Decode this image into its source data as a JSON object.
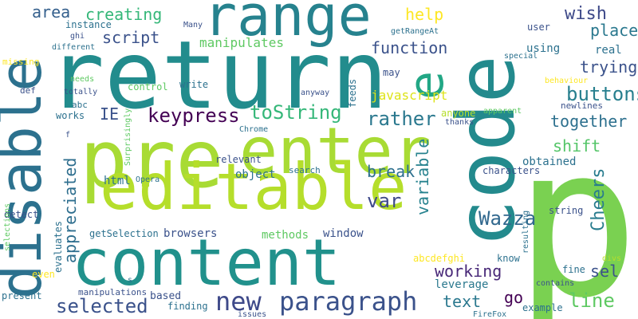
{
  "words": [
    {
      "text": "p",
      "color": "#7ad151",
      "vertical": false
    },
    {
      "text": "return",
      "color": "#228c8d",
      "vertical": false
    },
    {
      "text": "pre",
      "color": "#a8db34",
      "vertical": false
    },
    {
      "text": "enter",
      "color": "#a8db34",
      "vertical": false
    },
    {
      "text": "code",
      "color": "#238a8d",
      "vertical": true
    },
    {
      "text": "editable",
      "color": "#b5de2b",
      "vertical": false
    },
    {
      "text": "content",
      "color": "#21918c",
      "vertical": false
    },
    {
      "text": "disable",
      "color": "#2c718e",
      "vertical": true
    },
    {
      "text": "range",
      "color": "#26828e",
      "vertical": false
    },
    {
      "text": "e",
      "color": "#22a785",
      "vertical": true
    },
    {
      "text": "paragraph",
      "color": "#3b528b",
      "vertical": false
    },
    {
      "text": "new",
      "color": "#3e4989",
      "vertical": false
    },
    {
      "text": "selected",
      "color": "#3b528b",
      "vertical": false
    },
    {
      "text": "keypress",
      "color": "#440154",
      "vertical": false
    },
    {
      "text": "toString",
      "color": "#35b779",
      "vertical": false
    },
    {
      "text": "rather",
      "color": "#2a788e",
      "vertical": false
    },
    {
      "text": "together",
      "color": "#2d708e",
      "vertical": false
    },
    {
      "text": "buttons",
      "color": "#277f8e",
      "vertical": false
    },
    {
      "text": "shift",
      "color": "#54c568",
      "vertical": false
    },
    {
      "text": "break",
      "color": "#2d708e",
      "vertical": false
    },
    {
      "text": "var",
      "color": "#3e4989",
      "vertical": false
    },
    {
      "text": "Wazza",
      "color": "#31688e",
      "vertical": false
    },
    {
      "text": "working",
      "color": "#482878",
      "vertical": false
    },
    {
      "text": "line",
      "color": "#5ec962",
      "vertical": false
    },
    {
      "text": "text",
      "color": "#2a788e",
      "vertical": false
    },
    {
      "text": "go",
      "color": "#440154",
      "vertical": false
    },
    {
      "text": "sel",
      "color": "#3b528b",
      "vertical": false
    },
    {
      "text": "Cheers",
      "color": "#287c8e",
      "vertical": true
    },
    {
      "text": "variable",
      "color": "#26828e",
      "vertical": true
    },
    {
      "text": "appreciated",
      "color": "#2e6e8e",
      "vertical": true
    },
    {
      "text": "area",
      "color": "#35608d",
      "vertical": false
    },
    {
      "text": "creating",
      "color": "#35b779",
      "vertical": false
    },
    {
      "text": "script",
      "color": "#3b528b",
      "vertical": false
    },
    {
      "text": "help",
      "color": "#fde725",
      "vertical": false
    },
    {
      "text": "wish",
      "color": "#3e4a89",
      "vertical": false
    },
    {
      "text": "place",
      "color": "#2a788e",
      "vertical": false
    },
    {
      "text": "function",
      "color": "#3b528b",
      "vertical": false
    },
    {
      "text": "trying",
      "color": "#3b528b",
      "vertical": false
    },
    {
      "text": "IE",
      "color": "#3b528b",
      "vertical": false
    },
    {
      "text": "javascript",
      "color": "#dde318",
      "vertical": false
    },
    {
      "text": "manipulates",
      "color": "#5ec962",
      "vertical": false
    },
    {
      "text": "html",
      "color": "#2c728e",
      "vertical": false
    },
    {
      "text": "object",
      "color": "#2c718e",
      "vertical": false
    },
    {
      "text": "obtained",
      "color": "#2c718e",
      "vertical": false
    },
    {
      "text": "window",
      "color": "#3b528b",
      "vertical": false
    },
    {
      "text": "methods",
      "color": "#5ec962",
      "vertical": false
    },
    {
      "text": "browsers",
      "color": "#3b528b",
      "vertical": false
    },
    {
      "text": "leverage",
      "color": "#2a788e",
      "vertical": false
    },
    {
      "text": "real",
      "color": "#2c718e",
      "vertical": false
    },
    {
      "text": "using",
      "color": "#2c718e",
      "vertical": false
    },
    {
      "text": "user",
      "color": "#3b528b",
      "vertical": false
    },
    {
      "text": "getRangeAt",
      "color": "#2c718e",
      "vertical": false
    },
    {
      "text": "special",
      "color": "#2c718e",
      "vertical": false
    },
    {
      "text": "behaviour",
      "color": "#fde725",
      "vertical": false
    },
    {
      "text": "newlines",
      "color": "#3b528b",
      "vertical": false
    },
    {
      "text": "anyone",
      "color": "#b5de2b",
      "vertical": false
    },
    {
      "text": "apparent",
      "color": "#5ec962",
      "vertical": false
    },
    {
      "text": "thanks",
      "color": "#3b528b",
      "vertical": false
    },
    {
      "text": "characters",
      "color": "#3b528b",
      "vertical": false
    },
    {
      "text": "search",
      "color": "#2c718e",
      "vertical": false
    },
    {
      "text": "relevant",
      "color": "#3b528b",
      "vertical": false
    },
    {
      "text": "Chrome",
      "color": "#2c718e",
      "vertical": false
    },
    {
      "text": "Opera",
      "color": "#2c718e",
      "vertical": false
    },
    {
      "text": "string",
      "color": "#3b528b",
      "vertical": false
    },
    {
      "text": "abcdefghi",
      "color": "#fde725",
      "vertical": false
    },
    {
      "text": "know",
      "color": "#2c718e",
      "vertical": false
    },
    {
      "text": "fine",
      "color": "#2c718e",
      "vertical": false
    },
    {
      "text": "divs",
      "color": "#b5de2b",
      "vertical": false
    },
    {
      "text": "contains",
      "color": "#3b528b",
      "vertical": false
    },
    {
      "text": "example",
      "color": "#2c718e",
      "vertical": false
    },
    {
      "text": "FireFox",
      "color": "#2c718e",
      "vertical": false
    },
    {
      "text": "issues",
      "color": "#3b528b",
      "vertical": false
    },
    {
      "text": "finding",
      "color": "#2c718e",
      "vertical": false
    },
    {
      "text": "based",
      "color": "#3b528b",
      "vertical": false
    },
    {
      "text": "manipulations",
      "color": "#3b528b",
      "vertical": false
    },
    {
      "text": "present",
      "color": "#2c718e",
      "vertical": false
    },
    {
      "text": "even",
      "color": "#fde725",
      "vertical": false
    },
    {
      "text": "detect",
      "color": "#3b528b",
      "vertical": false
    },
    {
      "text": "getSelection",
      "color": "#2c718e",
      "vertical": false
    },
    {
      "text": "evaluates",
      "color": "#2c718e",
      "vertical": true
    },
    {
      "text": "selections",
      "color": "#5ec962",
      "vertical": true
    },
    {
      "text": "resulting",
      "color": "#2c718e",
      "vertical": true
    },
    {
      "text": "Surprisingly",
      "color": "#5ec962",
      "vertical": true
    },
    {
      "text": "feeds",
      "color": "#2c718e",
      "vertical": true
    },
    {
      "text": "may",
      "color": "#3b528b",
      "vertical": false
    },
    {
      "text": "anyway",
      "color": "#3b528b",
      "vertical": false
    },
    {
      "text": "write",
      "color": "#2c718e",
      "vertical": false
    },
    {
      "text": "control",
      "color": "#5ec962",
      "vertical": false
    },
    {
      "text": "needs",
      "color": "#5ec962",
      "vertical": false
    },
    {
      "text": "totally",
      "color": "#3b528b",
      "vertical": false
    },
    {
      "text": "abc",
      "color": "#2c718e",
      "vertical": false
    },
    {
      "text": "works",
      "color": "#2c718e",
      "vertical": false
    },
    {
      "text": "def",
      "color": "#3b528b",
      "vertical": false
    },
    {
      "text": "missing",
      "color": "#fde725",
      "vertical": false
    },
    {
      "text": "different",
      "color": "#2c718e",
      "vertical": false
    },
    {
      "text": "ghi",
      "color": "#3b528b",
      "vertical": false
    },
    {
      "text": "instance",
      "color": "#2c718e",
      "vertical": false
    },
    {
      "text": "Many",
      "color": "#3b528b",
      "vertical": false
    },
    {
      "text": "f",
      "color": "#3b528b",
      "vertical": false
    },
    {
      "text": "s",
      "color": "#2c718e",
      "vertical": false
    }
  ]
}
